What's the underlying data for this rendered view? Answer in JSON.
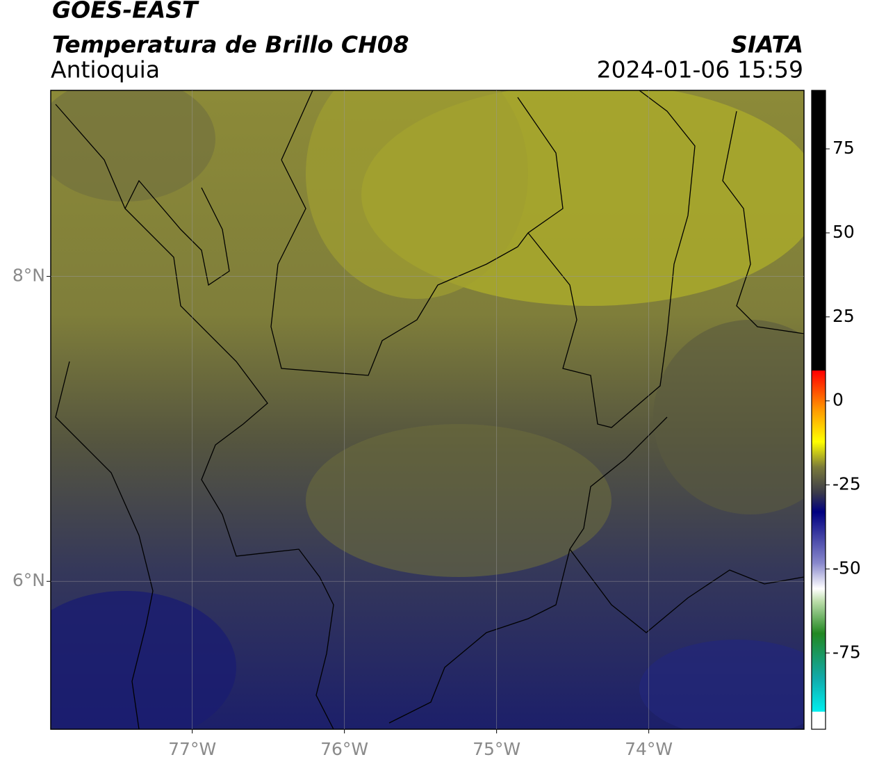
{
  "header": {
    "title": "GOES-EAST",
    "subtitle": "Temperatura de Brillo CH08",
    "region": "Antioquia",
    "source": "SIATA",
    "timestamp": "2024-01-06 15:59"
  },
  "map": {
    "xlim": [
      -77.93,
      -72.98
    ],
    "ylim": [
      5.03,
      9.22
    ],
    "xticks": [
      {
        "value": -77,
        "label": "77°W"
      },
      {
        "value": -76,
        "label": "76°W"
      },
      {
        "value": -75,
        "label": "75°W"
      },
      {
        "value": -74,
        "label": "74°W"
      }
    ],
    "yticks": [
      {
        "value": 8,
        "label": "8°N"
      },
      {
        "value": 6,
        "label": "6°N"
      }
    ]
  },
  "colorbar": {
    "lim": [
      -97.7,
      92.4
    ],
    "ticks": [
      75,
      50,
      25,
      0,
      -25,
      -50,
      -75
    ]
  }
}
